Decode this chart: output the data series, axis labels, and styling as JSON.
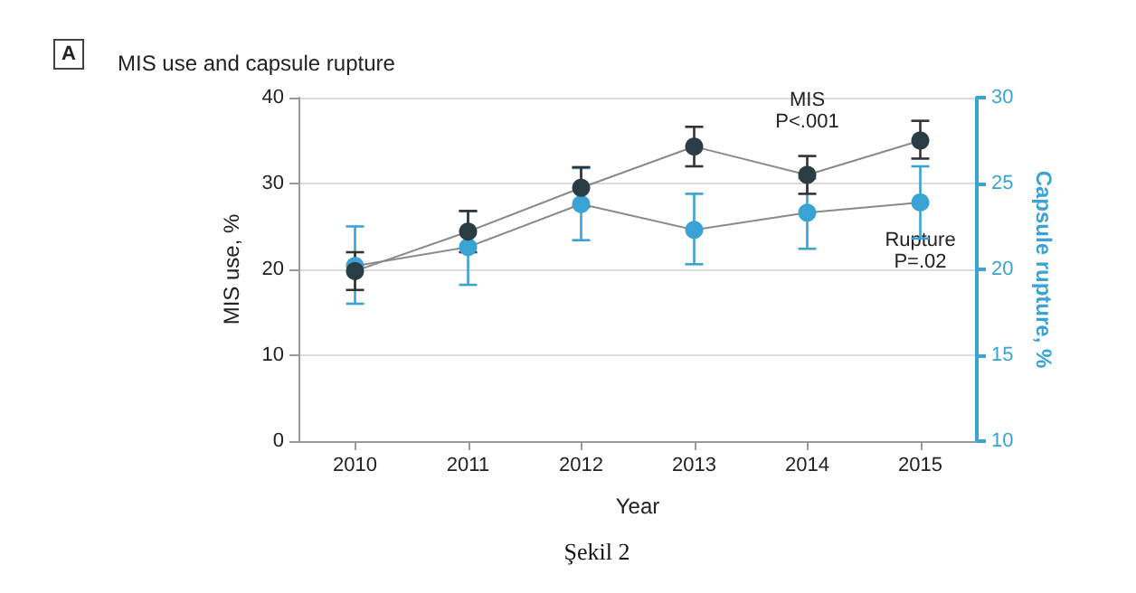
{
  "chart_data": {
    "type": "line",
    "title": "MIS use and capsule rupture",
    "xlabel": "Year",
    "ylabel": "MIS use, %",
    "y2label": "Capsule rupture, %",
    "categories": [
      "2010",
      "2011",
      "2012",
      "2013",
      "2014",
      "2015"
    ],
    "series": [
      {
        "name": "MIS",
        "color": "#2a3d44",
        "values": [
          19.8,
          24.4,
          29.5,
          34.3,
          31.0,
          35.0
        ],
        "errors": [
          [
            17.6,
            22.0
          ],
          [
            22.0,
            26.8
          ],
          [
            27.3,
            31.9
          ],
          [
            32.0,
            36.6
          ],
          [
            28.8,
            33.2
          ],
          [
            32.9,
            37.3
          ]
        ]
      },
      {
        "name": "Rupture",
        "color": "#3ba3d3",
        "axis": "y2",
        "values": [
          20.2,
          21.3,
          23.8,
          22.3,
          23.3,
          23.9
        ],
        "errors": [
          [
            18.0,
            22.5
          ],
          [
            19.1,
            23.4
          ],
          [
            21.7,
            25.9
          ],
          [
            20.3,
            24.4
          ],
          [
            21.2,
            25.3
          ],
          [
            21.8,
            26.0
          ]
        ]
      }
    ],
    "ylim": [
      0,
      40
    ],
    "yticks": [
      0,
      10,
      20,
      30,
      40
    ],
    "y2lim": [
      10,
      30
    ],
    "y2ticks": [
      10,
      15,
      20,
      25,
      30
    ],
    "annotations": [
      "A",
      "P<.001",
      "P=.02",
      "Şekil 2"
    ],
    "grid": "y",
    "marker": "circle",
    "line_style": "solid",
    "legend": false
  }
}
